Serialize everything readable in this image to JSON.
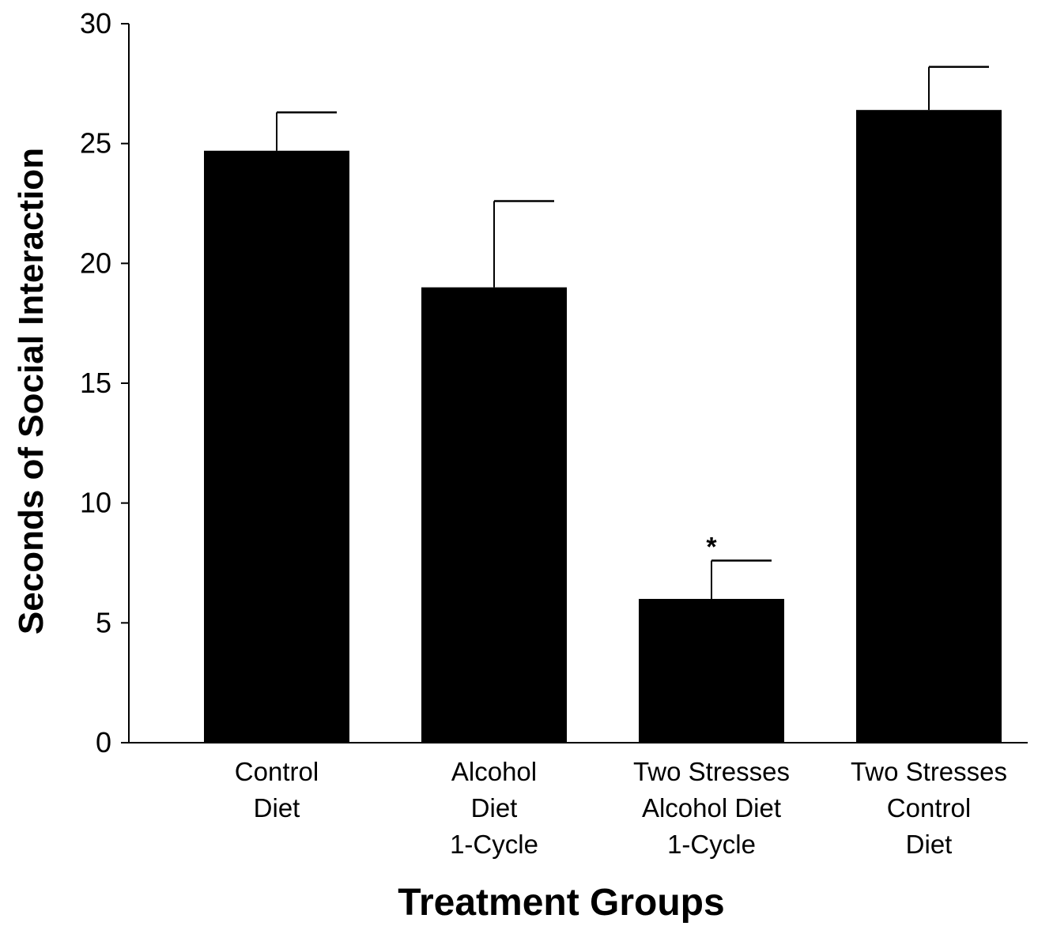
{
  "chart_data": {
    "type": "bar",
    "title": "",
    "xlabel": "Treatment Groups",
    "ylabel": "Seconds of Social Interaction",
    "ylim": [
      0,
      30
    ],
    "yticks": [
      "0",
      "5",
      "10",
      "15",
      "20",
      "25",
      "30"
    ],
    "categories": [
      [
        "Control",
        "Diet"
      ],
      [
        "Alcohol",
        "Diet",
        "1-Cycle"
      ],
      [
        "Two Stresses",
        "Alcohol Diet",
        "1-Cycle"
      ],
      [
        "Two Stresses",
        "Control",
        "Diet"
      ]
    ],
    "values": [
      24.7,
      19.0,
      6.0,
      26.4
    ],
    "error_upper": [
      26.3,
      22.6,
      7.6,
      28.2
    ],
    "annotations": [
      {
        "category_index": 2,
        "text": "*"
      }
    ],
    "grid": false,
    "bar_color": "#000000"
  }
}
